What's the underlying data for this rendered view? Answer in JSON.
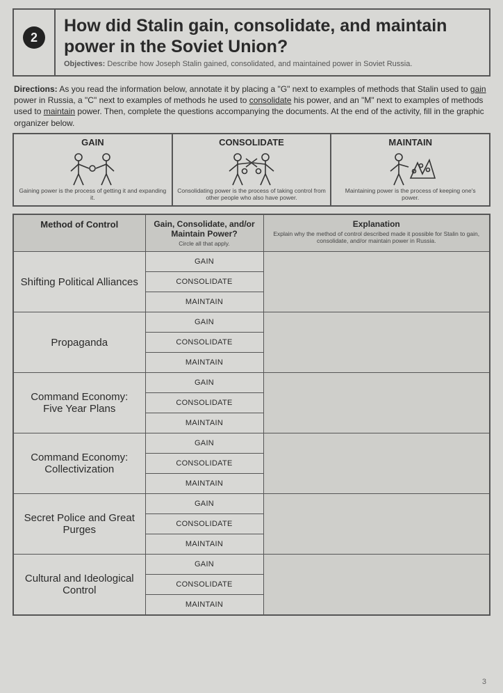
{
  "header": {
    "number": "2",
    "title": "How did Stalin gain, consolidate, and maintain power in the Soviet Union?",
    "objectives_label": "Objectives:",
    "objectives_text": "Describe how Joseph Stalin gained, consolidated, and maintained power in Soviet Russia."
  },
  "directions": {
    "label": "Directions:",
    "part1": "As you read the information below, annotate it by placing a \"G\" next to examples of methods that Stalin used to ",
    "u1": "gain",
    "part2": " power in Russia, a \"C\" next to examples of methods he used to ",
    "u2": "consolidate",
    "part3": " his power, and an \"M\" next to examples of methods used to ",
    "u3": "maintain",
    "part4": " power. Then, complete the questions accompanying the documents. At the end of the activity, fill in the graphic organizer below."
  },
  "concepts": [
    {
      "title": "GAIN",
      "desc": "Gaining power is the process of getting it and expanding it."
    },
    {
      "title": "CONSOLIDATE",
      "desc": "Consolidating power is the process of taking control from other people who also have power."
    },
    {
      "title": "MAINTAIN",
      "desc": "Maintaining power is the process of keeping one's power."
    }
  ],
  "table": {
    "headers": {
      "method": "Method of Control",
      "gcm": "Gain, Consolidate, and/or Maintain Power?",
      "gcm_sub": "Circle all that apply.",
      "exp": "Explanation",
      "exp_sub": "Explain why the method of control described made it possible for Stalin to gain, consolidate, and/or maintain power in Russia."
    },
    "options": [
      "GAIN",
      "CONSOLIDATE",
      "MAINTAIN"
    ],
    "methods": [
      "Shifting Political Alliances",
      "Propaganda",
      "Command Economy: Five Year Plans",
      "Command Economy: Collectivization",
      "Secret Police and Great Purges",
      "Cultural and Ideological Control"
    ]
  },
  "page_number": "3",
  "colors": {
    "page_bg": "#d8d8d5",
    "border": "#555555",
    "header_bg": "#c8c8c4",
    "num_circle_bg": "#222222",
    "num_circle_fg": "#eeeeee",
    "exp_cell_bg": "#cfcfcb"
  }
}
